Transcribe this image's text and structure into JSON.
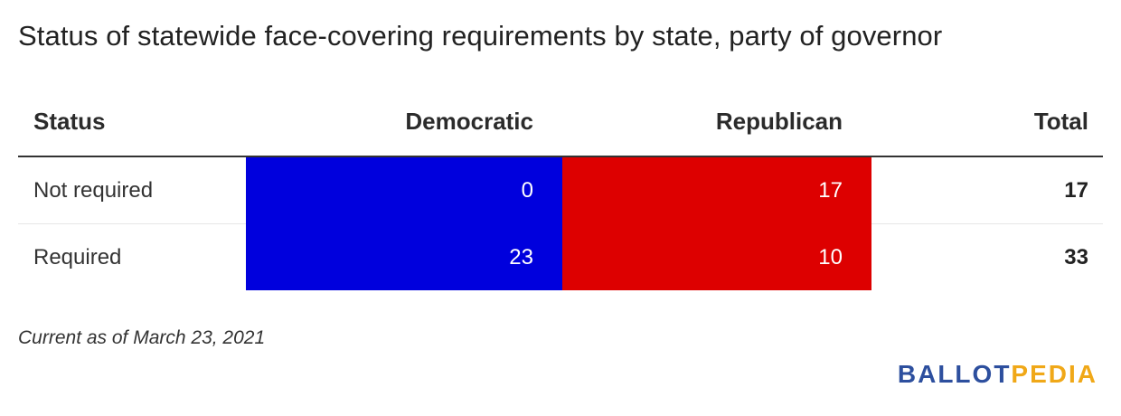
{
  "title": "Status of statewide face-covering requirements by state, party of governor",
  "colors": {
    "democratic": "#0000dd",
    "republican": "#dd0000",
    "logo_primary": "#2d4f9e",
    "logo_accent": "#f0a818"
  },
  "chart_data": {
    "type": "table",
    "title": "Status of statewide face-covering requirements by state, party of governor",
    "columns": [
      "Status",
      "Democratic",
      "Republican",
      "Total"
    ],
    "rows": [
      {
        "status": "Not required",
        "democratic": "0",
        "republican": "17",
        "total": "17"
      },
      {
        "status": "Required",
        "democratic": "23",
        "republican": "10",
        "total": "33"
      }
    ]
  },
  "note": "Current as of March 23, 2021",
  "logo": {
    "part1": "BALLOT",
    "part2": "PEDIA"
  }
}
